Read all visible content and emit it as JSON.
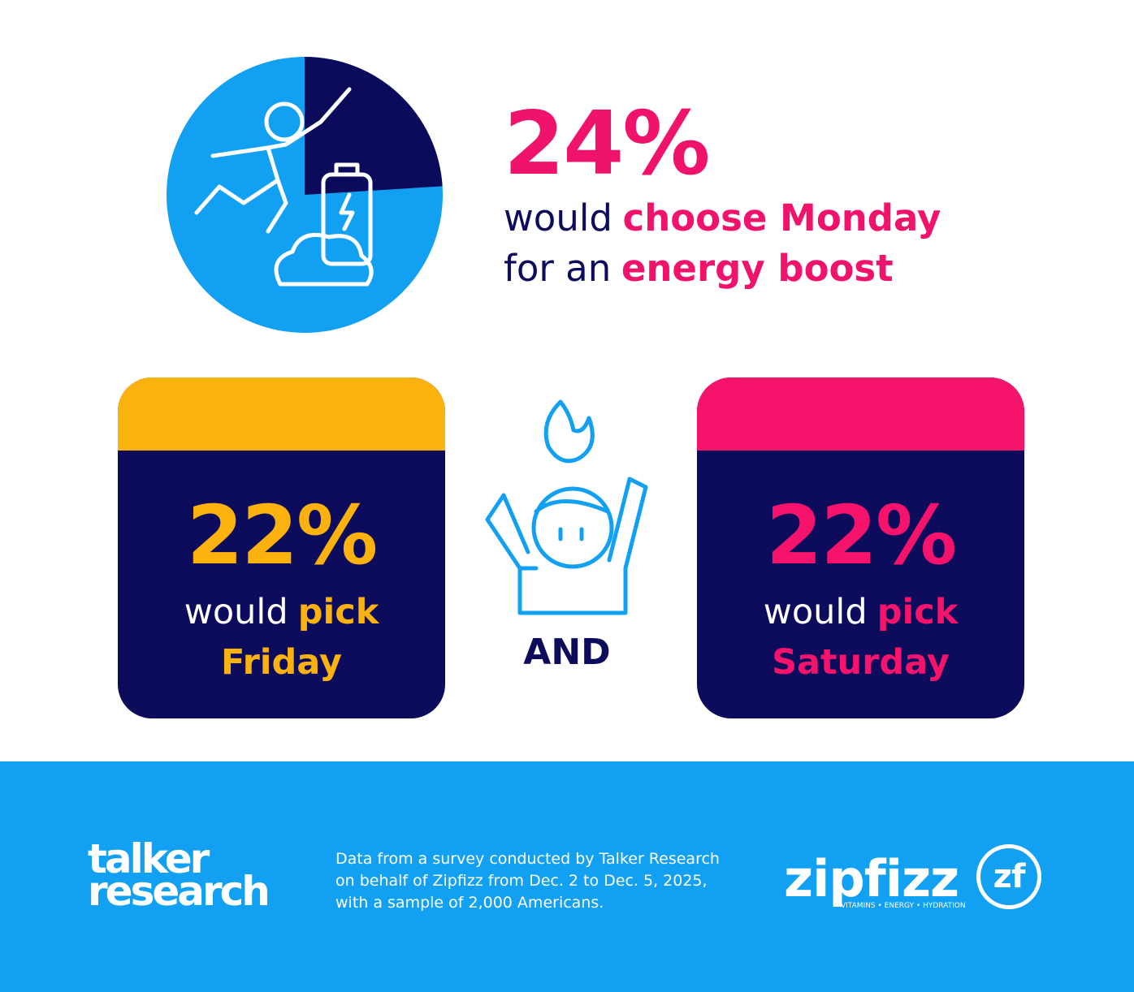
{
  "pie": {
    "share": 24,
    "colors": {
      "share": "#0c0a5a",
      "rest": "#12a0f2"
    }
  },
  "headline": {
    "color": "#f0136b",
    "share_label": "24%",
    "lines": [
      [
        {
          "text": "would",
          "highlight": false
        },
        {
          "text": "choose Monday",
          "highlight": true
        }
      ],
      [
        {
          "text": "for an",
          "highlight": false
        },
        {
          "text": "energy boost",
          "highlight": true
        }
      ]
    ]
  },
  "cards": [
    {
      "color": "#fbb20f",
      "share": 22,
      "share_label": "22%",
      "lines": [
        [
          {
            "text": "would",
            "highlight": false
          },
          {
            "text": "pick",
            "highlight": true
          }
        ],
        [
          {
            "text": "Friday",
            "highlight": true
          }
        ]
      ]
    },
    {
      "color": "#f5136c",
      "share": 22,
      "share_label": "22%",
      "lines": [
        [
          {
            "text": "would",
            "highlight": false
          },
          {
            "text": "pick",
            "highlight": true
          }
        ],
        [
          {
            "text": "Saturday",
            "highlight": true
          }
        ]
      ]
    }
  ],
  "connector": "AND",
  "footer": {
    "logo_left": [
      "talker",
      "research"
    ],
    "note": [
      "Data from a survey conducted by Talker Research",
      "on behalf of Zipfizz from Dec. 2 to Dec. 5, 2025,",
      "with a sample of 2,000 Americans."
    ],
    "logo_right": {
      "name": "zipfizz",
      "badge": "zf",
      "tagline": "VITAMINS • ENERGY • HYDRATION"
    }
  }
}
